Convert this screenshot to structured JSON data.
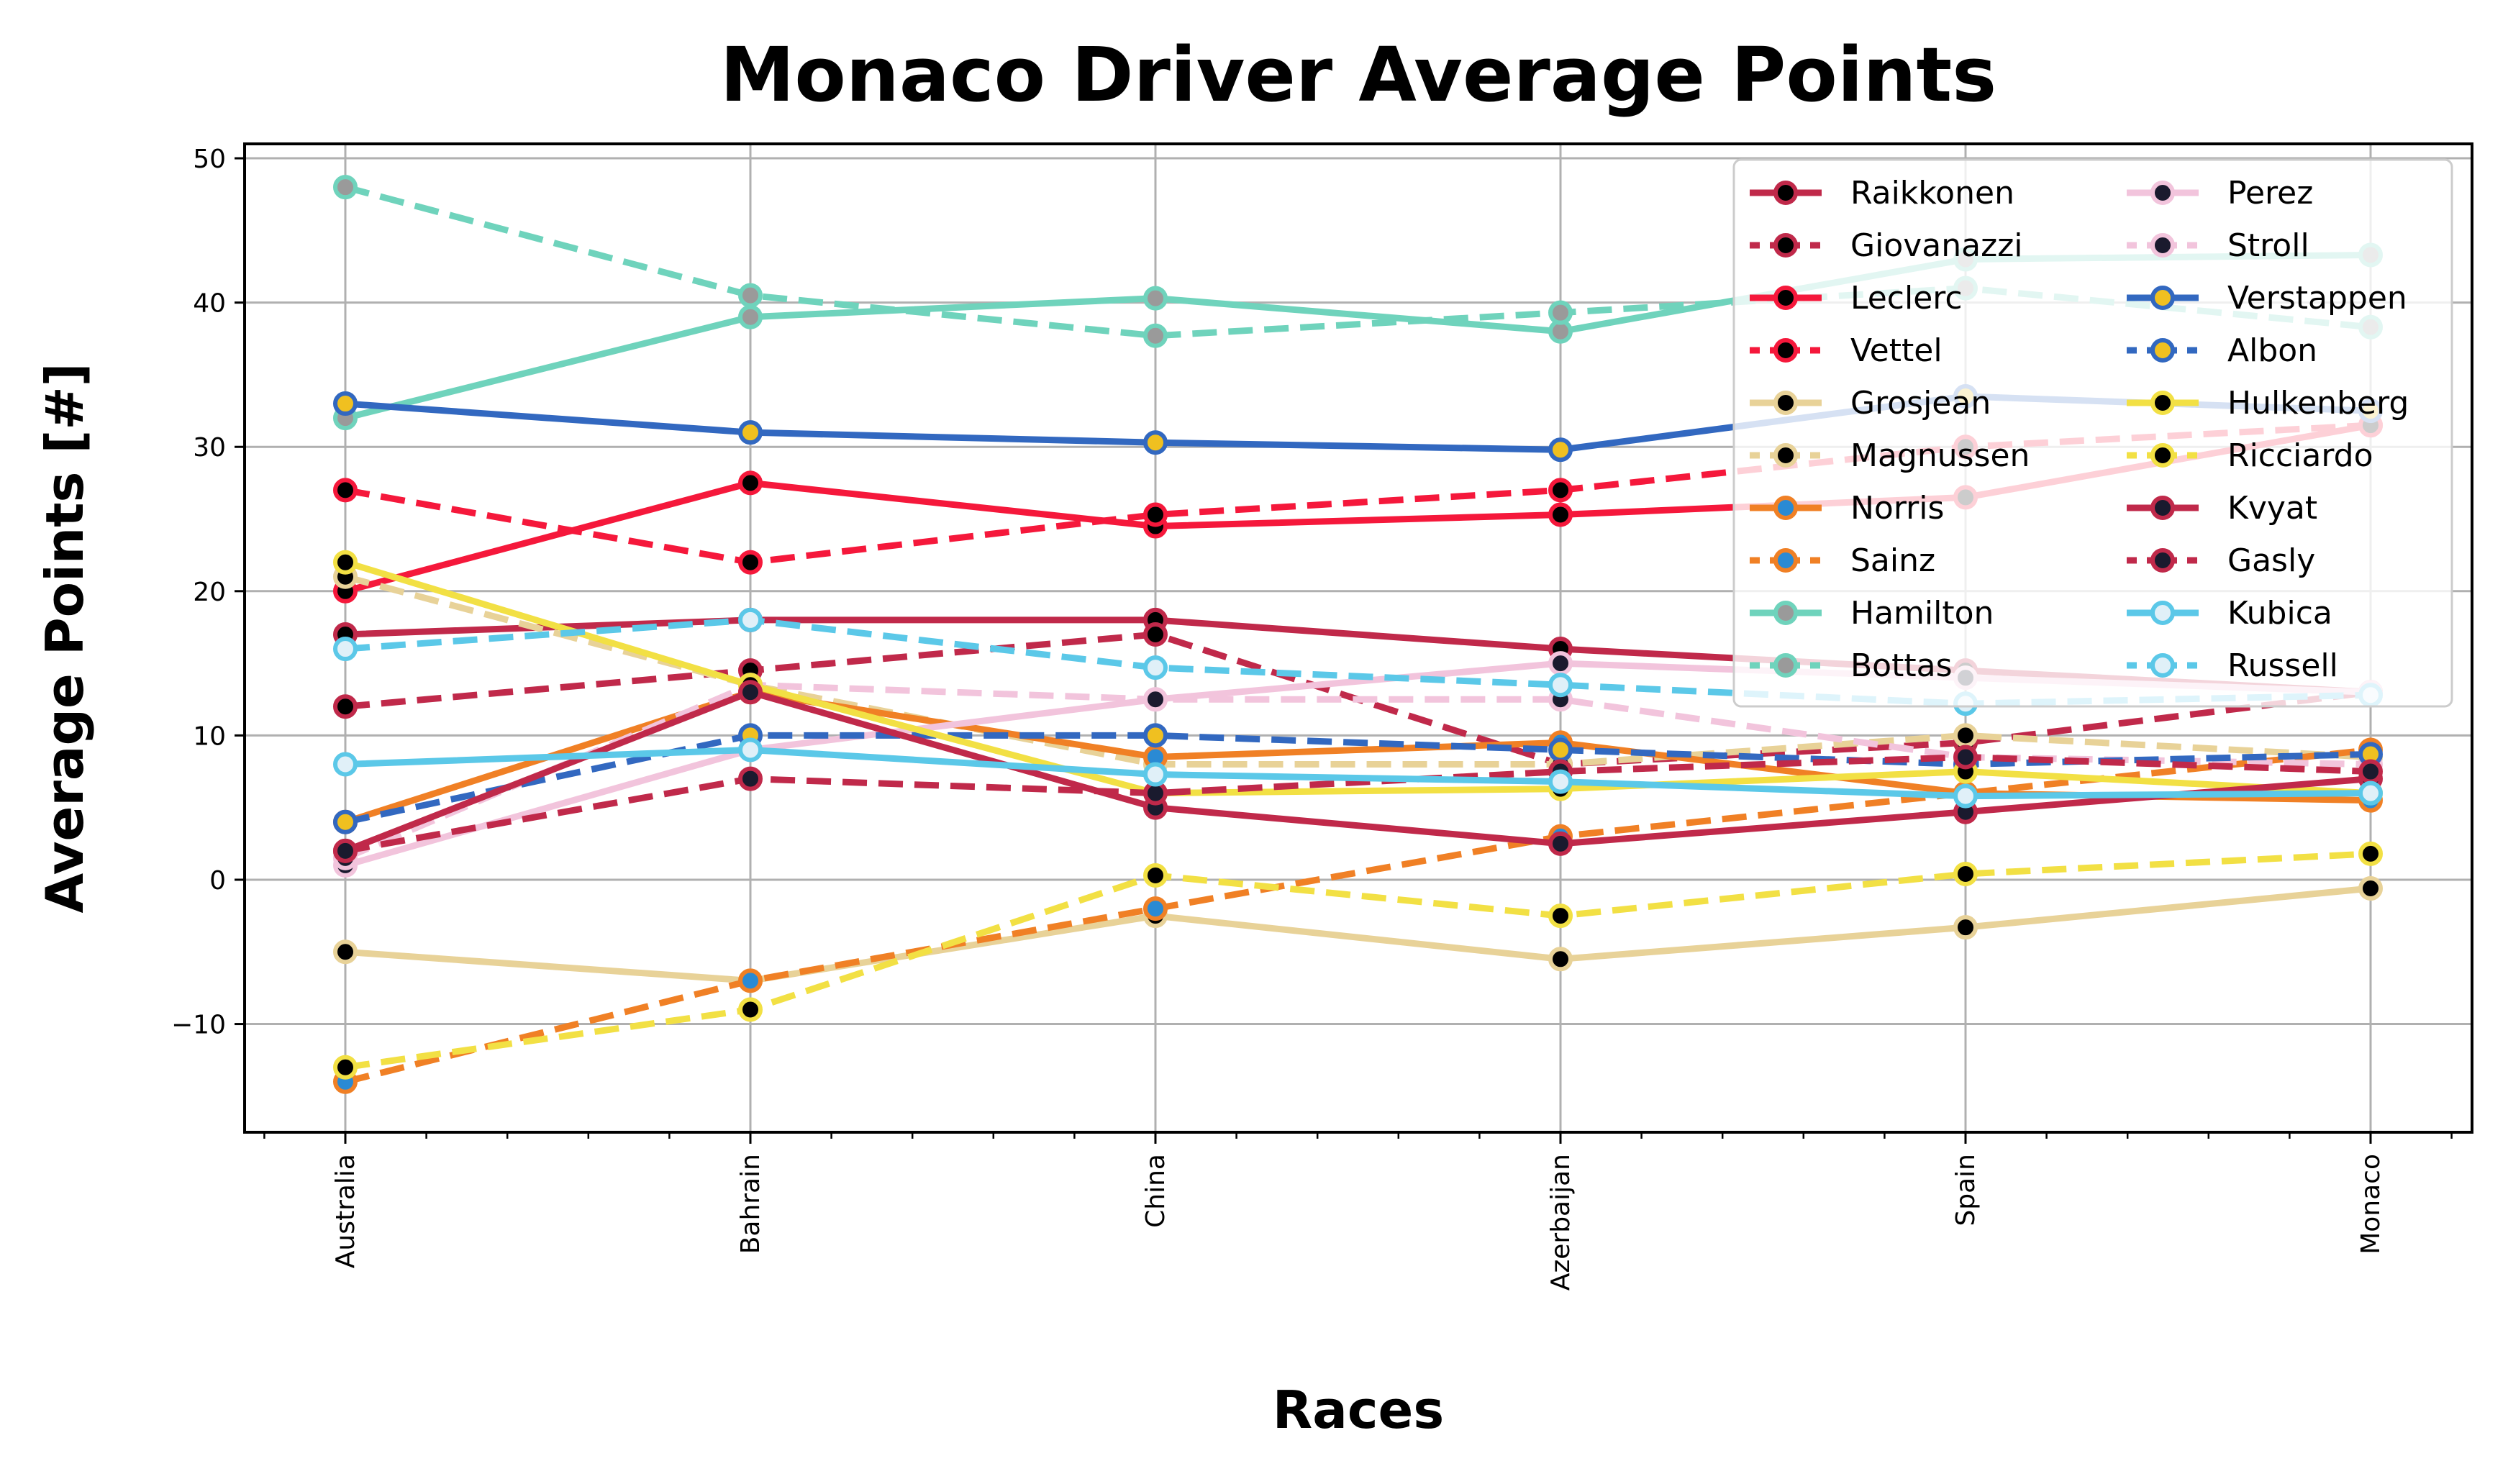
{
  "chart_data": {
    "type": "line",
    "title": "Monaco Driver Average Points",
    "xlabel": "Races",
    "ylabel": "Average Points [#]",
    "categories": [
      "Australia",
      "Bahrain",
      "China",
      "Azerbaijan",
      "Spain",
      "Monaco"
    ],
    "ylim": [
      -17.5,
      51
    ],
    "yticks": [
      -10,
      0,
      10,
      20,
      30,
      40,
      50
    ],
    "grid": true,
    "legend": {
      "placement": "top-right",
      "columns": 2
    },
    "series": [
      {
        "name": "Raikkonen",
        "color": "#c0294a",
        "marker": "#000000",
        "dashed": false,
        "values": [
          17,
          18,
          18,
          16,
          14.5,
          13
        ]
      },
      {
        "name": "Giovanazzi",
        "color": "#c0294a",
        "marker": "#000000",
        "dashed": true,
        "values": [
          12,
          14.5,
          17,
          8,
          9.5,
          13
        ]
      },
      {
        "name": "Leclerc",
        "color": "#f5183b",
        "marker": "#000000",
        "dashed": false,
        "values": [
          20,
          27.5,
          24.5,
          25.3,
          26.5,
          31.5
        ]
      },
      {
        "name": "Vettel",
        "color": "#f5183b",
        "marker": "#000000",
        "dashed": true,
        "values": [
          27,
          22,
          25.3,
          27,
          30,
          31.5
        ]
      },
      {
        "name": "Grosjean",
        "color": "#e8d298",
        "marker": "#000000",
        "dashed": false,
        "values": [
          -5,
          -7,
          -2.5,
          -5.5,
          -3.3,
          -0.6
        ]
      },
      {
        "name": "Magnussen",
        "color": "#e8d298",
        "marker": "#000000",
        "dashed": true,
        "values": [
          21,
          13.5,
          8,
          8,
          10,
          8.5
        ]
      },
      {
        "name": "Norris",
        "color": "#f08025",
        "marker": "#2a8ad4",
        "dashed": false,
        "values": [
          4,
          13,
          8.5,
          9.5,
          6,
          5.5
        ]
      },
      {
        "name": "Sainz",
        "color": "#f08025",
        "marker": "#2a8ad4",
        "dashed": true,
        "values": [
          -14,
          -7,
          -2,
          3,
          6,
          9
        ]
      },
      {
        "name": "Hamilton",
        "color": "#6fd3bc",
        "marker": "#9a9a9a",
        "dashed": false,
        "values": [
          32,
          39,
          40.3,
          38,
          43,
          43.3
        ]
      },
      {
        "name": "Bottas",
        "color": "#6fd3bc",
        "marker": "#9a9a9a",
        "dashed": true,
        "values": [
          48,
          40.5,
          37.7,
          39.3,
          41,
          38.3
        ]
      },
      {
        "name": "Perez",
        "color": "#f2c4dc",
        "marker": "#1a1a2e",
        "dashed": false,
        "values": [
          1,
          9,
          12.5,
          15,
          14,
          13
        ]
      },
      {
        "name": "Stroll",
        "color": "#f2c4dc",
        "marker": "#1a1a2e",
        "dashed": true,
        "values": [
          1.5,
          13.5,
          12.5,
          12.5,
          8.5,
          8
        ]
      },
      {
        "name": "Verstappen",
        "color": "#3268c0",
        "marker": "#f0c020",
        "dashed": false,
        "values": [
          33,
          31,
          30.3,
          29.8,
          33.5,
          32.5
        ]
      },
      {
        "name": "Albon",
        "color": "#3268c0",
        "marker": "#f0c020",
        "dashed": true,
        "values": [
          4,
          10,
          10,
          9,
          8,
          8.7
        ]
      },
      {
        "name": "Hulkenberg",
        "color": "#f2e044",
        "marker": "#000000",
        "dashed": false,
        "values": [
          22,
          13.5,
          6,
          6.3,
          7.5,
          6
        ]
      },
      {
        "name": "Ricciardo",
        "color": "#f2e044",
        "marker": "#000000",
        "dashed": true,
        "values": [
          -13,
          -9,
          0.3,
          -2.5,
          0.4,
          1.8
        ]
      },
      {
        "name": "Kvyat",
        "color": "#c0294a",
        "marker": "#1a1a2e",
        "dashed": false,
        "values": [
          2,
          13,
          5,
          2.5,
          4.7,
          7
        ]
      },
      {
        "name": "Gasly",
        "color": "#c0294a",
        "marker": "#1a1a2e",
        "dashed": true,
        "values": [
          2,
          7,
          6,
          7.5,
          8.5,
          7.5
        ]
      },
      {
        "name": "Kubica",
        "color": "#5bc8e8",
        "marker": "#e0f0f8",
        "dashed": false,
        "values": [
          8,
          9,
          7.3,
          6.8,
          5.8,
          6
        ]
      },
      {
        "name": "Russell",
        "color": "#5bc8e8",
        "marker": "#e0f0f8",
        "dashed": true,
        "values": [
          16,
          18,
          14.7,
          13.5,
          12.2,
          12.8
        ]
      }
    ]
  }
}
